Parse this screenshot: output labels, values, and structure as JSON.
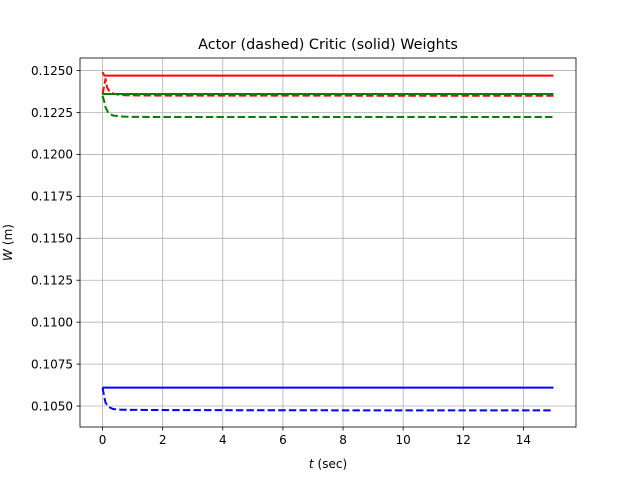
{
  "chart_data": {
    "type": "line",
    "title": "Actor (dashed) Critic (solid) Weights",
    "xlabel": {
      "var": "t",
      "unit": "(sec)"
    },
    "ylabel": {
      "var": "W",
      "unit": "(m)"
    },
    "xlim": [
      -0.75,
      15.75
    ],
    "ylim": [
      0.10375,
      0.12575
    ],
    "x_ticks": [
      0,
      2,
      4,
      6,
      8,
      10,
      12,
      14
    ],
    "x_tick_labels": [
      "0",
      "2",
      "4",
      "6",
      "8",
      "10",
      "12",
      "14"
    ],
    "y_ticks": [
      0.105,
      0.1075,
      0.11,
      0.1125,
      0.115,
      0.1175,
      0.12,
      0.1225,
      0.125
    ],
    "y_tick_labels": [
      "0.1050",
      "0.1075",
      "0.1100",
      "0.1125",
      "0.1150",
      "0.1175",
      "0.1200",
      "0.1225",
      "0.1250"
    ],
    "grid": true,
    "series": [
      {
        "color": "#ff0000",
        "style": "solid",
        "x": [
          0,
          0.06,
          0.12,
          0.5,
          1,
          2,
          5,
          10,
          15
        ],
        "y": [
          0.1249,
          0.1247,
          0.1247,
          0.1247,
          0.1247,
          0.1247,
          0.1247,
          0.1247,
          0.1247
        ]
      },
      {
        "color": "#ff0000",
        "style": "dashed",
        "x": [
          0,
          0.1,
          0.15,
          0.25,
          0.4,
          0.7,
          1,
          2,
          5,
          10,
          15
        ],
        "y": [
          0.1236,
          0.1245,
          0.124,
          0.1237,
          0.1236,
          0.12353,
          0.12352,
          0.12351,
          0.12351,
          0.1235,
          0.1235
        ],
        "note": "actor"
      },
      {
        "color": "#008000",
        "style": "solid",
        "x": [
          0,
          0.15,
          0.3,
          0.6,
          1,
          2,
          5,
          10,
          15
        ],
        "y": [
          0.1236,
          0.1236,
          0.1236,
          0.1236,
          0.1236,
          0.1236,
          0.1236,
          0.1236,
          0.1236
        ]
      },
      {
        "color": "#008000",
        "style": "dashed",
        "x": [
          0,
          0.05,
          0.1,
          0.2,
          0.35,
          0.6,
          1,
          2,
          5,
          10,
          15
        ],
        "y": [
          0.1235,
          0.1232,
          0.1228,
          0.12245,
          0.12232,
          0.12226,
          0.12224,
          0.12223,
          0.12223,
          0.12223,
          0.12223
        ]
      },
      {
        "color": "#0000ff",
        "style": "solid",
        "x": [
          0,
          0.5,
          1,
          2,
          5,
          10,
          15
        ],
        "y": [
          0.1061,
          0.1061,
          0.1061,
          0.1061,
          0.1061,
          0.1061,
          0.1061
        ]
      },
      {
        "color": "#0000ff",
        "style": "dashed",
        "x": [
          0,
          0.05,
          0.1,
          0.2,
          0.35,
          0.6,
          1,
          2,
          5,
          10,
          15
        ],
        "y": [
          0.1061,
          0.1056,
          0.1052,
          0.10495,
          0.10482,
          0.10478,
          0.10477,
          0.10476,
          0.10475,
          0.10474,
          0.10474
        ]
      }
    ]
  }
}
